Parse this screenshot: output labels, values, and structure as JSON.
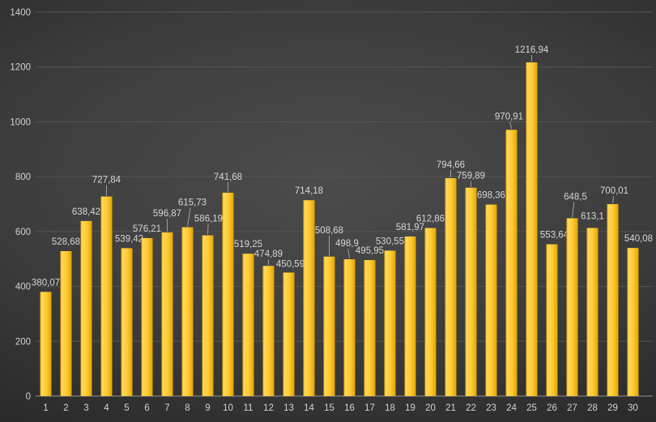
{
  "chart_data": {
    "type": "bar",
    "title": "",
    "xlabel": "",
    "ylabel": "",
    "categories": [
      "1",
      "2",
      "3",
      "4",
      "5",
      "6",
      "7",
      "8",
      "9",
      "10",
      "11",
      "12",
      "13",
      "14",
      "15",
      "16",
      "17",
      "18",
      "19",
      "20",
      "21",
      "22",
      "23",
      "24",
      "25",
      "26",
      "27",
      "28",
      "29",
      "30"
    ],
    "values": [
      380.07,
      528.68,
      638.42,
      727.84,
      539.42,
      576.21,
      596.87,
      615.73,
      586.19,
      741.68,
      519.25,
      474.89,
      450.59,
      714.18,
      508.68,
      498.9,
      495.95,
      530.55,
      581.97,
      612.86,
      794.66,
      759.89,
      698.36,
      970.91,
      1216.94,
      553.64,
      648.5,
      613.1,
      700.01,
      540.08
    ],
    "labels": [
      "380,07",
      "528,68",
      "638,42",
      "727,84",
      "539,42",
      "576,21",
      "596,87",
      "615,73",
      "586,19",
      "741,68",
      "519,25",
      "474,89",
      "450,59",
      "714,18",
      "508,68",
      "498,9",
      "495,95",
      "530,55",
      "581,97",
      "612,86",
      "794,66",
      "759,89",
      "698,36",
      "970,91",
      "1216,94",
      "553,64",
      "648,5",
      "613,1",
      "700,01",
      "540,08"
    ],
    "ylim": [
      0,
      1400
    ],
    "yticks": [
      "0",
      "200",
      "400",
      "600",
      "800",
      "1000",
      "1200",
      "1400"
    ],
    "grid": true,
    "legend": false,
    "colors": {
      "bar_edge_left": "#dfa500",
      "bar_light": "#ffd65a",
      "bar_mid": "#fecb33",
      "bar_edge_right": "#e2a300",
      "value_label": "#d6d6d6",
      "axis_text": "#d2d2d2",
      "gridline": "#545454",
      "axis_line": "#949494",
      "leader_line": "#a0a0a0",
      "background_center": "#4c4c4c",
      "background_edge": "#1f1f1f"
    }
  }
}
